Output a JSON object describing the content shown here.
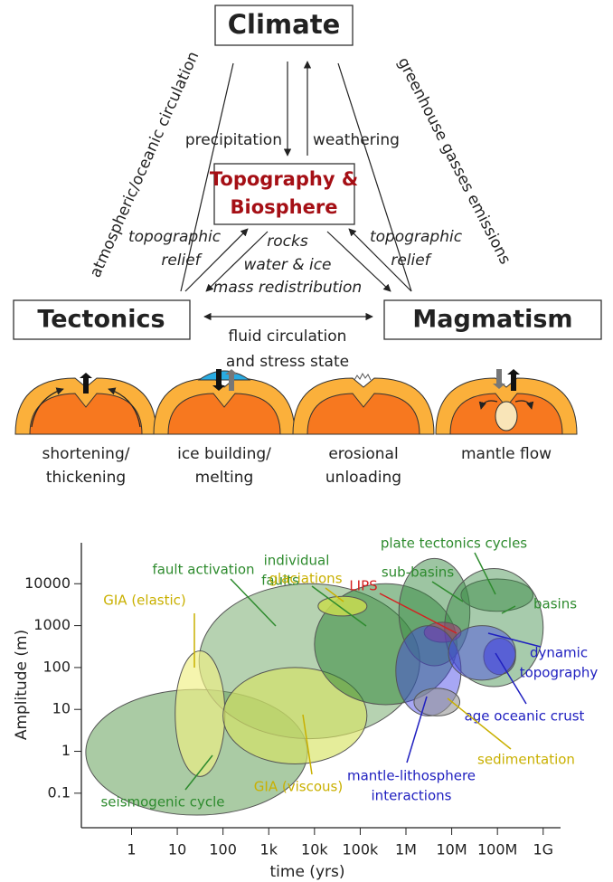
{
  "diagram": {
    "climate": "Climate",
    "topography": [
      "Topography &",
      "Biosphere"
    ],
    "tectonics": "Tectonics",
    "magmatism": "Magmatism",
    "precipitation": "precipitation",
    "weathering": "weathering",
    "atmospheric": "atmospheric/oceanic circulation",
    "greenhouse": "greenhouse gasses emissions",
    "relief_left": [
      "topographic",
      "relief"
    ],
    "relief_right": [
      "topographic",
      "relief"
    ],
    "redistribution": [
      "rocks",
      "water & ice",
      "mass redistribution"
    ],
    "fluid": [
      "fluid circulation",
      "and stress state"
    ],
    "panels": [
      [
        "shortening/",
        "thickening"
      ],
      [
        "ice building/",
        "melting"
      ],
      [
        "erosional",
        "unloading"
      ],
      [
        "mantle flow"
      ]
    ]
  },
  "chart_data": {
    "type": "ellipse",
    "xlabel": "time (yrs)",
    "ylabel": "Amplitude (m)",
    "xscale": "log",
    "yscale": "log",
    "xlim": [
      0.08,
      2400000000
    ],
    "ylim": [
      0.015,
      95000
    ],
    "xticks": [
      1,
      10,
      100,
      {
        "value": 1000,
        "label": "1k"
      },
      {
        "value": 10000,
        "label": "10k"
      },
      {
        "value": 100000,
        "label": "100k"
      },
      {
        "value": 1000000,
        "label": "1M"
      },
      {
        "value": 10000000,
        "label": "10M"
      },
      {
        "value": 100000000,
        "label": "100M"
      },
      {
        "value": 1000000000,
        "label": "1G"
      }
    ],
    "yticks": [
      0.1,
      1,
      10,
      100,
      1000,
      10000
    ],
    "regions": [
      {
        "name": [
          "seismogenic cycle"
        ],
        "color": "rgba(100,160,90,0.55)",
        "label_color": "#2e8b2e",
        "x": [
          0.1,
          7000
        ],
        "y": [
          0.03,
          30
        ]
      },
      {
        "name": [
          "fault activation"
        ],
        "color": "rgba(110,165,100,0.5)",
        "label_color": "#2e8b2e",
        "x": [
          30,
          2000000
        ],
        "y": [
          2,
          10000
        ]
      },
      {
        "name": [
          "GIA (elastic)"
        ],
        "color": "rgba(240,240,130,0.65)",
        "label_color": "#c9b000",
        "x": [
          9,
          110
        ],
        "y": [
          0.25,
          250
        ]
      },
      {
        "name": [
          "GIA (viscous)"
        ],
        "color": "rgba(215,228,100,0.65)",
        "label_color": "#c9b000",
        "x": [
          100,
          140000
        ],
        "y": [
          0.5,
          100
        ]
      },
      {
        "name": [
          "individual",
          "faults"
        ],
        "color": "rgba(40,130,50,0.5)",
        "label_color": "#2e8b2e",
        "x": [
          10000,
          13000000
        ],
        "y": [
          13,
          10000
        ]
      },
      {
        "name": [
          "glaciations"
        ],
        "color": "rgba(200,220,80,0.85)",
        "label_color": "#c9b000",
        "x": [
          12000,
          140000
        ],
        "y": [
          1700,
          5000
        ]
      },
      {
        "name": [
          "sub-basins"
        ],
        "color": "rgba(60,140,70,0.5)",
        "label_color": "#2e8b2e",
        "x": [
          700000,
          25000000
        ],
        "y": [
          110,
          40000
        ]
      },
      {
        "name": [
          "plate tectonics cycles"
        ],
        "color": "rgba(60,140,70,0.5)",
        "label_color": "#2e8b2e",
        "x": [
          16000000,
          600000000
        ],
        "y": [
          2200,
          13000
        ]
      },
      {
        "name": [
          "basins"
        ],
        "color": "rgba(60,140,70,0.45)",
        "label_color": "#2e8b2e",
        "x": [
          7000000,
          1000000000
        ],
        "y": [
          35,
          23000
        ]
      },
      {
        "name": [
          "LIPS"
        ],
        "color": "rgba(170,50,120,0.55)",
        "label_color": "#d42020",
        "x": [
          2500000,
          16000000
        ],
        "y": [
          400,
          1200
        ]
      },
      {
        "name": [
          "mantle-lithosphere",
          "interactions"
        ],
        "color": "rgba(60,60,230,0.45)",
        "label_color": "#2020c0",
        "x": [
          600000,
          16000000
        ],
        "y": [
          7,
          1000
        ]
      },
      {
        "name": [
          "age oceanic crust"
        ],
        "color": "rgba(50,50,220,0.55)",
        "label_color": "#2020c0",
        "x": [
          50000000,
          250000000
        ],
        "y": [
          68,
          500
        ]
      },
      {
        "name": [
          "dynamic",
          "topography"
        ],
        "color": "rgba(70,70,230,0.45)",
        "label_color": "#2020c0",
        "x": [
          8500000,
          250000000
        ],
        "y": [
          50,
          1000
        ]
      },
      {
        "name": [
          "sedimentation"
        ],
        "color": "rgba(150,150,150,0.6)",
        "label_color": "#c9b000",
        "x": [
          1500000,
          15000000
        ],
        "y": [
          7,
          32
        ]
      }
    ]
  }
}
